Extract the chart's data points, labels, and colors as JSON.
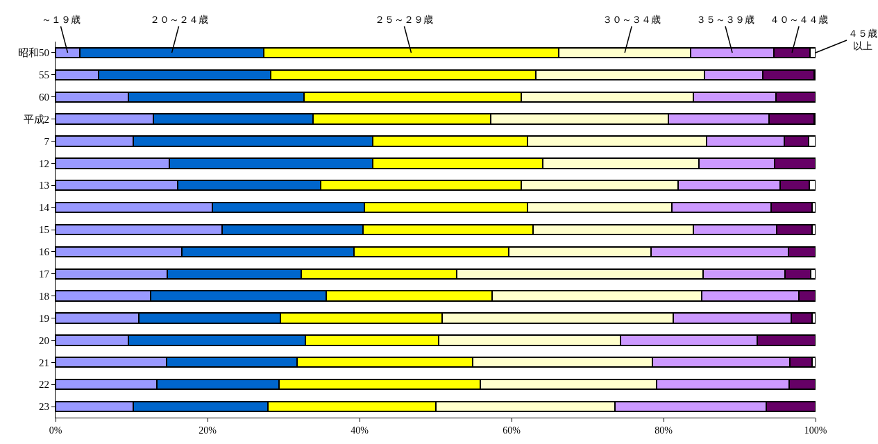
{
  "chart_data": {
    "type": "bar",
    "orientation": "horizontal",
    "stacked": true,
    "categories": [
      "昭和50",
      "55",
      "60",
      "平成2",
      "7",
      "12",
      "13",
      "14",
      "15",
      "16",
      "17",
      "18",
      "19",
      "20",
      "21",
      "22",
      "23"
    ],
    "xlim": [
      0,
      100
    ],
    "xticks": [
      {
        "value": 0,
        "label": "0%"
      },
      {
        "value": 20,
        "label": "20%"
      },
      {
        "value": 40,
        "label": "40%"
      },
      {
        "value": 60,
        "label": "60%"
      },
      {
        "value": 80,
        "label": "80%"
      },
      {
        "value": 100,
        "label": "100%"
      }
    ],
    "series": [
      {
        "name": "～１９歳",
        "color": "#9999ff",
        "values": [
          3.2,
          5.7,
          9.6,
          12.9,
          10.2,
          15.0,
          16.1,
          20.6,
          21.9,
          16.6,
          14.7,
          12.5,
          11.0,
          9.6,
          14.6,
          13.3,
          10.2
        ]
      },
      {
        "name": "２０～２４歳",
        "color": "#0066cc",
        "values": [
          24.2,
          22.6,
          23.1,
          21.0,
          31.5,
          26.7,
          18.8,
          20.0,
          18.6,
          22.7,
          17.6,
          23.1,
          18.6,
          23.3,
          17.2,
          16.1,
          17.7
        ]
      },
      {
        "name": "２５～２９歳",
        "color": "#ffff00",
        "values": [
          38.8,
          34.9,
          28.6,
          23.4,
          20.4,
          22.4,
          26.4,
          21.5,
          22.3,
          20.3,
          20.5,
          21.8,
          21.3,
          17.5,
          23.1,
          26.5,
          22.1
        ]
      },
      {
        "name": "３０～３４歳",
        "color": "#ffffcc",
        "values": [
          17.4,
          22.2,
          22.6,
          23.3,
          23.6,
          20.6,
          20.6,
          19.0,
          21.1,
          18.8,
          32.4,
          27.6,
          30.4,
          23.9,
          23.6,
          23.2,
          23.6
        ]
      },
      {
        "name": "３５～３９歳",
        "color": "#cc99ff",
        "values": [
          10.9,
          7.7,
          10.9,
          13.3,
          10.2,
          9.9,
          13.4,
          13.1,
          11.0,
          18.0,
          10.8,
          12.8,
          15.5,
          18.0,
          18.1,
          17.4,
          19.9
        ]
      },
      {
        "name": "４０～４４歳",
        "color": "#660066",
        "values": [
          4.8,
          6.7,
          5.2,
          5.9,
          3.2,
          5.4,
          3.9,
          5.3,
          4.6,
          3.6,
          3.4,
          2.2,
          2.7,
          7.7,
          2.9,
          3.5,
          6.5
        ]
      },
      {
        "name": "４５歳以上",
        "color": "#ffffff",
        "values": [
          0.7,
          0.2,
          0,
          0.2,
          0.9,
          0,
          0.8,
          0.5,
          0.5,
          0,
          0.6,
          0,
          0.5,
          0,
          0.5,
          0,
          0
        ]
      }
    ]
  }
}
